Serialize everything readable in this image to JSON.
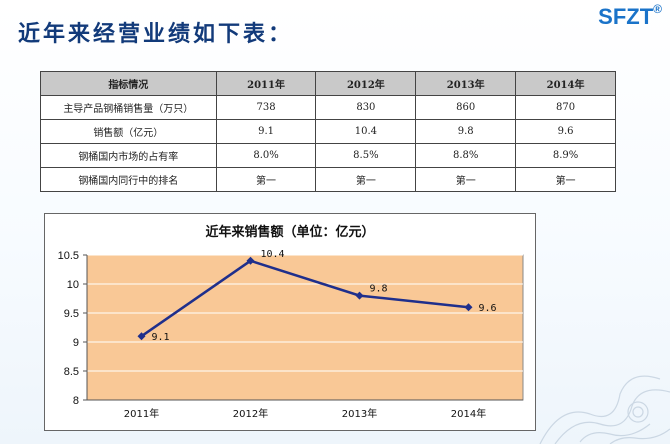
{
  "slide": {
    "title": "近年来经营业绩如下表：",
    "logo": "SFZT",
    "logo_mark": "®"
  },
  "table": {
    "headers": [
      "指标情况",
      "2011年",
      "2012年",
      "2013年",
      "2014年"
    ],
    "rows": [
      [
        "主导产品钢桶销售量（万只）",
        "738",
        "830",
        "860",
        "870"
      ],
      [
        "销售额（亿元）",
        "9.1",
        "10.4",
        "9.8",
        "9.6"
      ],
      [
        "钢桶国内市场的占有率",
        "8.0%",
        "8.5%",
        "8.8%",
        "8.9%"
      ],
      [
        "钢桶国内同行中的排名",
        "第一",
        "第一",
        "第一",
        "第一"
      ]
    ]
  },
  "chart_data": {
    "type": "line",
    "title": "近年来销售额（单位：亿元）",
    "categories": [
      "2011年",
      "2012年",
      "2013年",
      "2014年"
    ],
    "values": [
      9.1,
      10.4,
      9.8,
      9.6
    ],
    "data_labels": [
      "9.1",
      "10.4",
      "9.8",
      "9.6"
    ],
    "yticks": [
      "8",
      "8.5",
      "9",
      "9.5",
      "10",
      "10.5"
    ],
    "ylim": [
      8,
      10.5
    ],
    "grid": true,
    "legend": "none",
    "colors": {
      "line": "#1f2f8c",
      "plot_bg": "#f9c896",
      "grid": "#ffffff"
    }
  }
}
